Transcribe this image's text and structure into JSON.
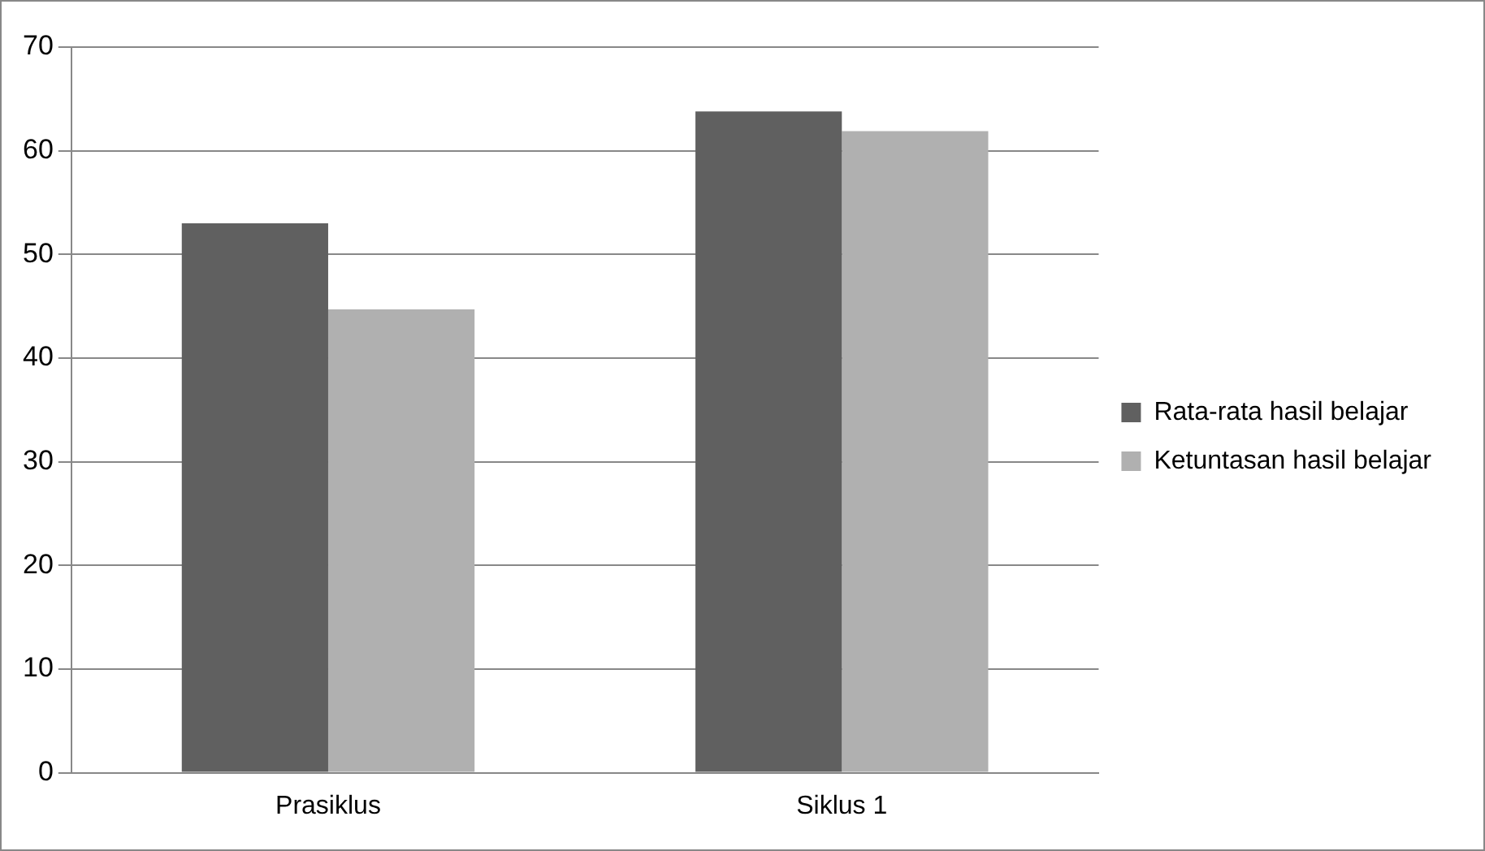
{
  "chart_data": {
    "type": "bar",
    "categories": [
      "Prasiklus",
      "Siklus 1"
    ],
    "series": [
      {
        "name": "Rata-rata hasil belajar",
        "color": "#606060",
        "values": [
          53,
          63.8
        ]
      },
      {
        "name": "Ketuntasan hasil belajar",
        "color": "#b0b0b0",
        "values": [
          44.7,
          61.9
        ]
      }
    ],
    "ylim": [
      0,
      70
    ],
    "yticks": [
      0,
      10,
      20,
      30,
      40,
      50,
      60,
      70
    ],
    "grid": "y",
    "legend": "right"
  }
}
